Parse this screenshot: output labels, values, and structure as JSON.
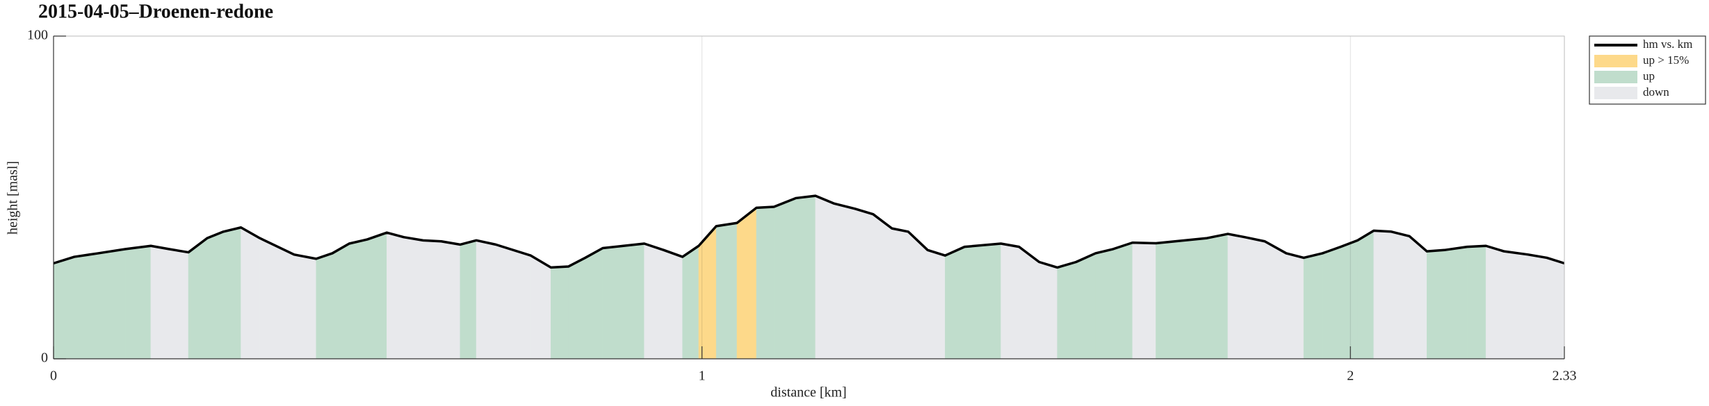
{
  "chart_data": {
    "type": "area-profile",
    "title": "2015-04-05–Droenen-redone",
    "xlabel": "distance [km]",
    "ylabel": "height [masl]",
    "xlim": [
      0,
      2.33
    ],
    "xticks": [
      0,
      1,
      2,
      2.33
    ],
    "ylim": [
      0,
      100
    ],
    "yticks": [
      0,
      100
    ],
    "grid": true,
    "legend": "outside-top-right",
    "line": {
      "name": "hm vs. km",
      "color": "#000000"
    },
    "fills": [
      {
        "name": "up > 15%",
        "color": "#fdd98a"
      },
      {
        "name": "up",
        "color": "#c0ddcc"
      },
      {
        "name": "down",
        "color": "#e8e9ec"
      }
    ],
    "x": [
      0,
      0.032,
      0.069,
      0.111,
      0.15,
      0.178,
      0.208,
      0.237,
      0.262,
      0.289,
      0.318,
      0.371,
      0.405,
      0.43,
      0.456,
      0.484,
      0.514,
      0.54,
      0.57,
      0.598,
      0.627,
      0.652,
      0.682,
      0.736,
      0.767,
      0.794,
      0.82,
      0.847,
      0.879,
      0.911,
      0.941,
      0.97,
      0.995,
      1.022,
      1.054,
      1.084,
      1.111,
      1.145,
      1.175,
      1.204,
      1.236,
      1.264,
      1.293,
      1.318,
      1.348,
      1.375,
      1.405,
      1.461,
      1.489,
      1.52,
      1.548,
      1.577,
      1.607,
      1.634,
      1.664,
      1.7,
      1.779,
      1.811,
      1.837,
      1.868,
      1.901,
      1.928,
      1.957,
      1.985,
      2.011,
      2.036,
      2.063,
      2.091,
      2.118,
      2.145,
      2.18,
      2.209,
      2.237,
      2.274,
      2.303,
      2.33
    ],
    "values": [
      29.6,
      31.6,
      32.7,
      34.0,
      35.0,
      34.0,
      33.0,
      37.4,
      39.4,
      40.7,
      37.4,
      32.3,
      31.0,
      32.7,
      35.7,
      37.0,
      39.1,
      37.7,
      36.7,
      36.4,
      35.4,
      36.7,
      35.4,
      32.0,
      28.3,
      28.6,
      31.3,
      34.3,
      35.0,
      35.7,
      33.7,
      31.6,
      35.0,
      41.1,
      42.1,
      46.8,
      47.1,
      49.8,
      50.5,
      48.1,
      46.5,
      44.8,
      40.4,
      39.4,
      33.7,
      32.0,
      34.7,
      35.7,
      34.7,
      30.0,
      28.3,
      30.0,
      32.7,
      34.0,
      36.0,
      35.8,
      37.4,
      38.7,
      37.7,
      36.4,
      32.7,
      31.3,
      32.7,
      34.7,
      36.7,
      39.7,
      39.4,
      38.0,
      33.3,
      33.7,
      34.7,
      35.0,
      33.3,
      32.3,
      31.3,
      29.6
    ],
    "segment_fill": [
      1,
      1,
      1,
      1,
      2,
      2,
      1,
      1,
      1,
      2,
      2,
      2,
      1,
      1,
      1,
      1,
      2,
      2,
      2,
      2,
      1,
      2,
      2,
      2,
      1,
      1,
      1,
      1,
      1,
      2,
      2,
      1,
      0,
      1,
      0,
      1,
      1,
      1,
      2,
      2,
      2,
      2,
      2,
      2,
      2,
      1,
      1,
      2,
      2,
      2,
      1,
      1,
      1,
      1,
      2,
      1,
      1,
      2,
      2,
      2,
      2,
      1,
      1,
      1,
      1,
      2,
      2,
      2,
      1,
      1,
      1,
      2,
      2,
      2,
      2
    ]
  }
}
